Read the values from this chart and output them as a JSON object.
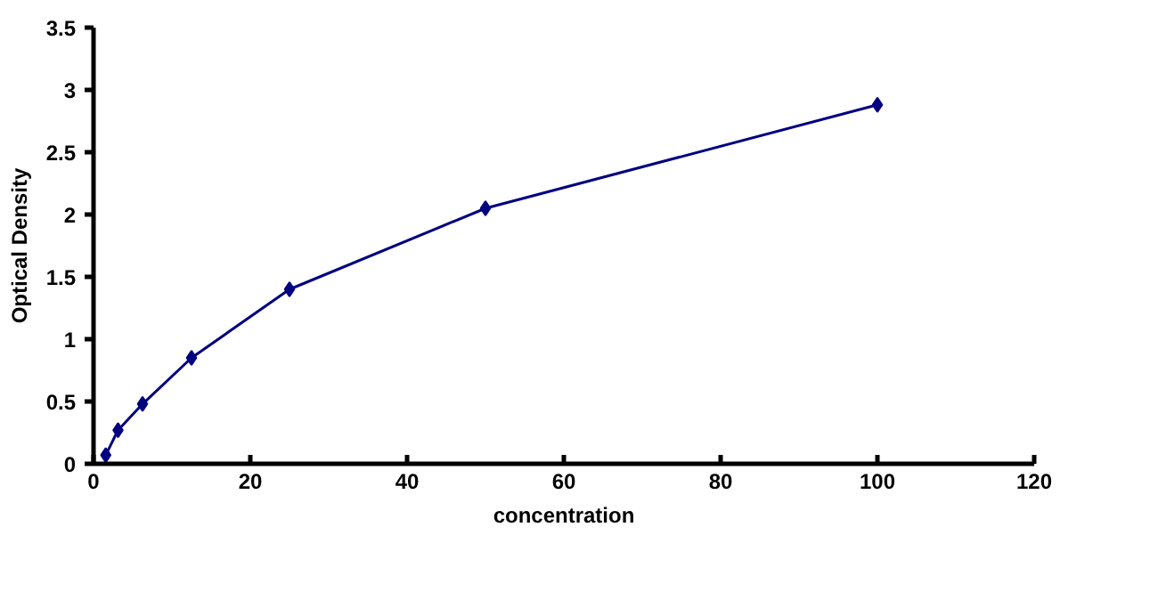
{
  "chart_data": {
    "type": "line",
    "xlabel": "concentration",
    "ylabel": "Optical Density",
    "x": [
      1.56,
      3.125,
      6.25,
      12.5,
      25,
      50,
      100
    ],
    "series": [
      {
        "color": "#000080",
        "values": [
          0.07,
          0.27,
          0.48,
          0.85,
          1.4,
          2.05,
          2.88
        ]
      }
    ],
    "xlim": [
      0,
      120
    ],
    "xticks": [
      0,
      20,
      40,
      60,
      80,
      100,
      120
    ],
    "ylim": [
      0,
      3.5
    ],
    "yticks": [
      0,
      0.5,
      1,
      1.5,
      2,
      2.5,
      3,
      3.5
    ],
    "marker": "diamond",
    "line_style": "solid",
    "grid": false
  }
}
